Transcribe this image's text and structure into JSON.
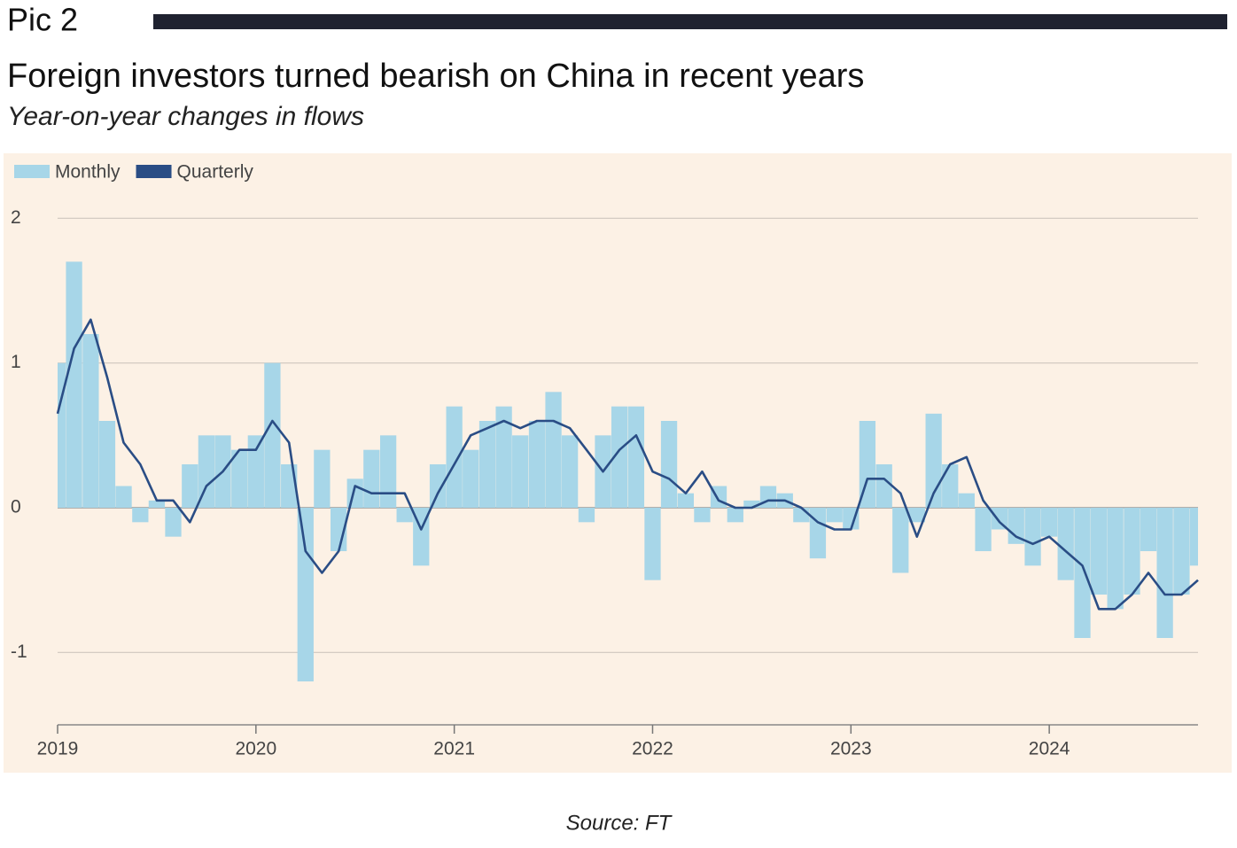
{
  "header": {
    "label": "Pic 2"
  },
  "chart_data": {
    "type": "bar",
    "title": "Foreign investors turned bearish on China in recent years",
    "subtitle": "Year-on-year changes in flows",
    "source": "Source: FT",
    "x": [
      2019,
      2019.083,
      2019.167,
      2019.25,
      2019.333,
      2019.417,
      2019.5,
      2019.583,
      2019.667,
      2019.75,
      2019.833,
      2019.917,
      2020,
      2020.083,
      2020.167,
      2020.25,
      2020.333,
      2020.417,
      2020.5,
      2020.583,
      2020.667,
      2020.75,
      2020.833,
      2020.917,
      2021,
      2021.083,
      2021.167,
      2021.25,
      2021.333,
      2021.417,
      2021.5,
      2021.583,
      2021.667,
      2021.75,
      2021.833,
      2021.917,
      2022,
      2022.083,
      2022.167,
      2022.25,
      2022.333,
      2022.417,
      2022.5,
      2022.583,
      2022.667,
      2022.75,
      2022.833,
      2022.917,
      2023,
      2023.083,
      2023.167,
      2023.25,
      2023.333,
      2023.417,
      2023.5,
      2023.583,
      2023.667,
      2023.75,
      2023.833,
      2023.917,
      2024,
      2024.083,
      2024.167,
      2024.25,
      2024.333,
      2024.417,
      2024.5,
      2024.583,
      2024.667,
      2024.75
    ],
    "series": [
      {
        "name": "Monthly",
        "type": "bar",
        "color": "#a7d6e8",
        "values": [
          1.0,
          1.7,
          1.2,
          0.6,
          0.15,
          -0.1,
          0.05,
          -0.2,
          0.3,
          0.5,
          0.5,
          0.4,
          0.5,
          1.0,
          0.3,
          -1.2,
          0.4,
          -0.3,
          0.2,
          0.4,
          0.5,
          -0.1,
          -0.4,
          0.3,
          0.7,
          0.4,
          0.6,
          0.7,
          0.5,
          0.6,
          0.8,
          0.5,
          -0.1,
          0.5,
          0.7,
          0.7,
          -0.5,
          0.6,
          0.1,
          -0.1,
          0.15,
          -0.1,
          0.05,
          0.15,
          0.1,
          -0.1,
          -0.35,
          -0.1,
          -0.15,
          0.6,
          0.3,
          -0.45,
          -0.1,
          0.65,
          0.3,
          0.1,
          -0.3,
          -0.15,
          -0.25,
          -0.4,
          -0.2,
          -0.5,
          -0.9,
          -0.6,
          -0.7,
          -0.6,
          -0.3,
          -0.9,
          -0.6,
          -0.4
        ]
      },
      {
        "name": "Quarterly",
        "type": "line",
        "color": "#2a4d85",
        "values": [
          0.65,
          1.1,
          1.3,
          0.9,
          0.45,
          0.3,
          0.05,
          0.05,
          -0.1,
          0.15,
          0.25,
          0.4,
          0.4,
          0.6,
          0.45,
          -0.3,
          -0.45,
          -0.3,
          0.15,
          0.1,
          0.1,
          0.1,
          -0.15,
          0.1,
          0.3,
          0.5,
          0.55,
          0.6,
          0.55,
          0.6,
          0.6,
          0.55,
          0.4,
          0.25,
          0.4,
          0.5,
          0.25,
          0.2,
          0.1,
          0.25,
          0.05,
          0.0,
          0.0,
          0.05,
          0.05,
          0.0,
          -0.1,
          -0.15,
          -0.15,
          0.2,
          0.2,
          0.1,
          -0.2,
          0.1,
          0.3,
          0.35,
          0.05,
          -0.1,
          -0.2,
          -0.25,
          -0.2,
          -0.3,
          -0.4,
          -0.7,
          -0.7,
          -0.6,
          -0.45,
          -0.6,
          -0.6,
          -0.5
        ]
      }
    ],
    "xlim": [
      2019,
      2024.75
    ],
    "xticks": [
      2019,
      2020,
      2021,
      2022,
      2023,
      2024
    ],
    "ylim": [
      -1.5,
      2.1
    ],
    "yticks": [
      -1,
      0,
      1,
      2
    ],
    "grid": true,
    "legend": "top-left"
  }
}
